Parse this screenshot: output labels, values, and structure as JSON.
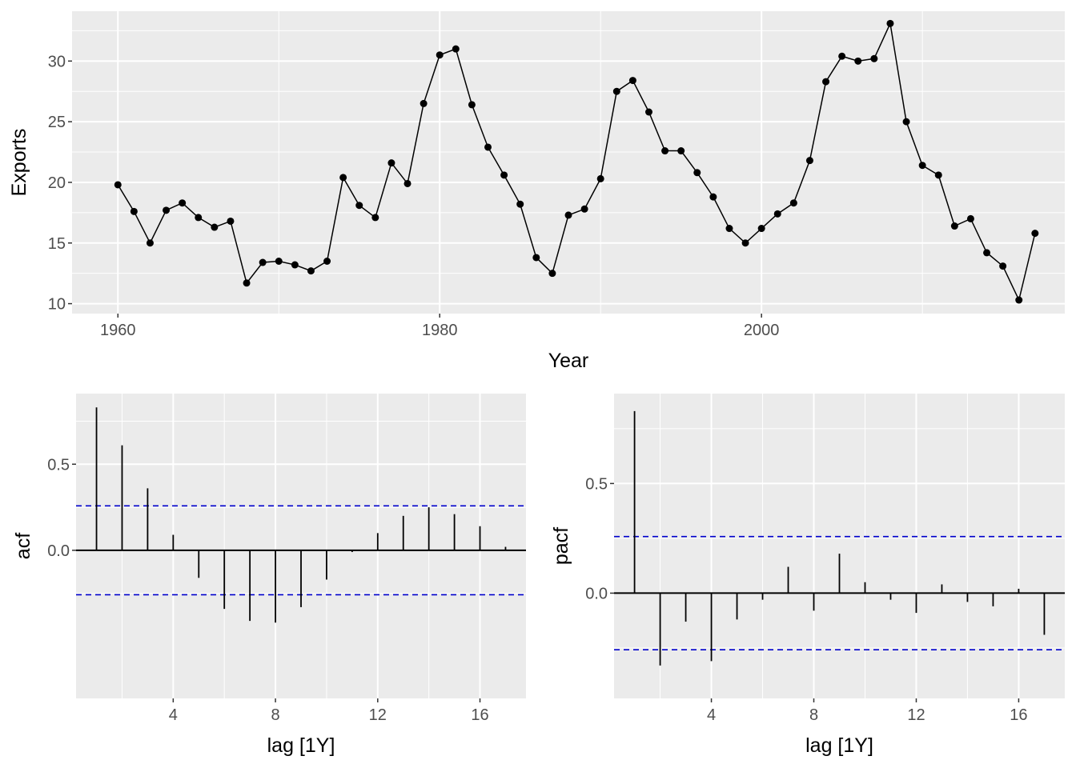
{
  "chart_data": [
    {
      "type": "line",
      "xlabel": "Year",
      "ylabel": "Exports",
      "xlim": [
        1957.15,
        2018.85
      ],
      "ylim": [
        9.18,
        34.11
      ],
      "x_ticks": [
        1960,
        1980,
        2000
      ],
      "x_tick_labels": [
        "1960",
        "1980",
        "2000"
      ],
      "y_ticks": [
        10,
        15,
        20,
        25,
        30
      ],
      "y_tick_labels": [
        "10",
        "15",
        "20",
        "25",
        "30"
      ],
      "grid": true,
      "x": [
        1960,
        1961,
        1962,
        1963,
        1964,
        1965,
        1966,
        1967,
        1968,
        1969,
        1970,
        1971,
        1972,
        1973,
        1974,
        1975,
        1976,
        1977,
        1978,
        1979,
        1980,
        1981,
        1982,
        1983,
        1984,
        1985,
        1986,
        1987,
        1988,
        1989,
        1990,
        1991,
        1992,
        1993,
        1994,
        1995,
        1996,
        1997,
        1998,
        1999,
        2000,
        2001,
        2002,
        2003,
        2004,
        2005,
        2006,
        2007,
        2008,
        2009,
        2010,
        2011,
        2012,
        2013,
        2014,
        2015,
        2016,
        2017
      ],
      "values": [
        19.8,
        17.6,
        15.0,
        17.7,
        18.3,
        17.1,
        16.3,
        16.8,
        11.7,
        13.4,
        13.5,
        13.2,
        12.7,
        13.5,
        20.4,
        18.1,
        17.1,
        21.6,
        19.9,
        26.5,
        30.5,
        31.0,
        26.4,
        22.9,
        20.6,
        18.2,
        13.8,
        12.5,
        17.3,
        17.8,
        20.3,
        27.5,
        28.4,
        25.8,
        22.6,
        22.6,
        20.8,
        18.8,
        16.2,
        15.0,
        16.2,
        17.4,
        18.3,
        21.8,
        28.3,
        30.4,
        30.0,
        30.2,
        33.1,
        25.0,
        21.4,
        20.6,
        16.4,
        17.0,
        14.2,
        13.1,
        10.3,
        15.8
      ]
    },
    {
      "type": "bar",
      "xlabel": "lag [1Y]",
      "ylabel": "acf",
      "xlim": [
        0.2,
        17.8
      ],
      "ylim": [
        -0.86,
        0.91
      ],
      "x_ticks": [
        4,
        8,
        12,
        16
      ],
      "x_tick_labels": [
        "4",
        "8",
        "12",
        "16"
      ],
      "y_ticks": [
        0.0,
        0.5
      ],
      "y_tick_labels": [
        "0.0",
        "0.5"
      ],
      "grid": true,
      "ci": 0.258,
      "lags": [
        1,
        2,
        3,
        4,
        5,
        6,
        7,
        8,
        9,
        10,
        11,
        12,
        13,
        14,
        15,
        16,
        17
      ],
      "values": [
        0.83,
        0.61,
        0.36,
        0.09,
        -0.16,
        -0.34,
        -0.41,
        -0.42,
        -0.33,
        -0.17,
        -0.01,
        0.1,
        0.2,
        0.25,
        0.21,
        0.14,
        0.02
      ]
    },
    {
      "type": "bar",
      "xlabel": "lag [1Y]",
      "ylabel": "pacf",
      "xlim": [
        0.2,
        17.8
      ],
      "ylim": [
        -0.48,
        0.91
      ],
      "x_ticks": [
        4,
        8,
        12,
        16
      ],
      "x_tick_labels": [
        "4",
        "8",
        "12",
        "16"
      ],
      "y_ticks": [
        0.0,
        0.5
      ],
      "y_tick_labels": [
        "0.0",
        "0.5"
      ],
      "grid": true,
      "ci": 0.258,
      "lags": [
        1,
        2,
        3,
        4,
        5,
        6,
        7,
        8,
        9,
        10,
        11,
        12,
        13,
        14,
        15,
        16,
        17
      ],
      "values": [
        0.83,
        -0.33,
        -0.13,
        -0.31,
        -0.12,
        -0.03,
        0.12,
        -0.08,
        0.18,
        0.05,
        -0.03,
        -0.09,
        0.04,
        -0.04,
        -0.06,
        0.02,
        -0.19
      ]
    }
  ],
  "colors": {
    "panel": "#ebebeb",
    "grid": "#ffffff",
    "line": "#000000",
    "ci_line": "#0000cc",
    "tick_text": "#4d4d4d"
  }
}
